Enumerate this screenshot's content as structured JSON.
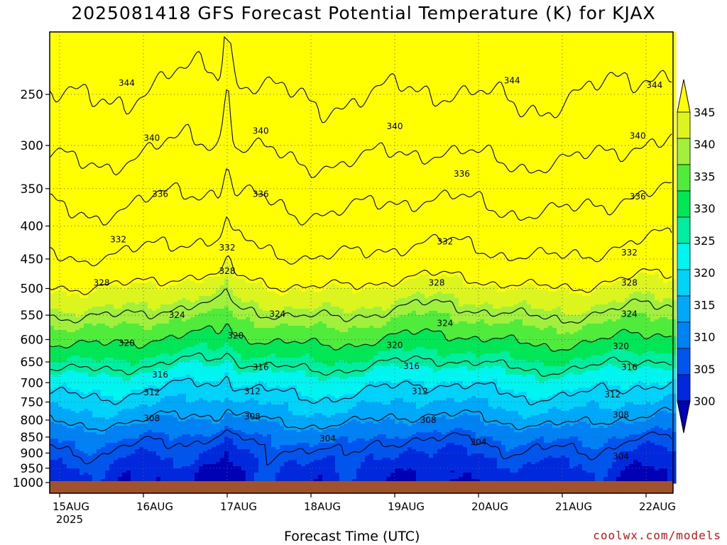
{
  "title": "2025081418 GFS Forecast Potential Temperature (K) for KJAX",
  "xlabel": "Forecast Time (UTC)",
  "credit": "coolwx.com/models",
  "chart_data": {
    "type": "heatmap",
    "title": "2025081418 GFS Forecast Potential Temperature (K) for KJAX",
    "xlabel": "Forecast Time (UTC)",
    "ylabel": "",
    "x_ticks": [
      "15AUG",
      "16AUG",
      "17AUG",
      "18AUG",
      "19AUG",
      "20AUG",
      "21AUG",
      "22AUG"
    ],
    "x_tick_year": "2025",
    "x_range_days": [
      0,
      7.83
    ],
    "y_ticks": [
      250,
      300,
      350,
      400,
      450,
      500,
      550,
      600,
      650,
      700,
      750,
      800,
      850,
      900,
      950,
      1000
    ],
    "y_log_scale": true,
    "y_range": [
      200,
      1000
    ],
    "y_reversed": true,
    "grid": true,
    "colorbar_ticks": [
      300,
      305,
      310,
      315,
      320,
      325,
      330,
      335,
      340,
      345
    ],
    "colorbar_colors": [
      "#0000b4",
      "#0028dc",
      "#0055ee",
      "#0082f5",
      "#00a8fa",
      "#00d2fa",
      "#00f5f0",
      "#00eea0",
      "#00e655",
      "#50ec3c",
      "#a0f03c",
      "#dcf51e",
      "#ffff00"
    ],
    "contour_interval": 4,
    "profile": {
      "pressures": [
        200,
        250,
        300,
        350,
        400,
        450,
        500,
        550,
        600,
        650,
        700,
        750,
        800,
        850,
        900,
        950,
        1000
      ],
      "theta": [
        347,
        343.5,
        340.5,
        337,
        334,
        331,
        327,
        323.5,
        320,
        316.5,
        313,
        310.5,
        308,
        305,
        303,
        301.5,
        300.5
      ]
    },
    "contour_labels": [
      {
        "v": "344",
        "d": 0.8,
        "p": 240
      },
      {
        "v": "344",
        "d": 5.4,
        "p": 238
      },
      {
        "v": "344",
        "d": 7.1,
        "p": 242
      },
      {
        "v": "340",
        "d": 1.1,
        "p": 292
      },
      {
        "v": "340",
        "d": 2.4,
        "p": 285
      },
      {
        "v": "340",
        "d": 4.0,
        "p": 280
      },
      {
        "v": "340",
        "d": 6.9,
        "p": 290
      },
      {
        "v": "336",
        "d": 1.2,
        "p": 357
      },
      {
        "v": "336",
        "d": 2.4,
        "p": 357
      },
      {
        "v": "336",
        "d": 4.8,
        "p": 332
      },
      {
        "v": "336",
        "d": 6.9,
        "p": 360
      },
      {
        "v": "332",
        "d": 0.7,
        "p": 420
      },
      {
        "v": "332",
        "d": 2.0,
        "p": 432
      },
      {
        "v": "332",
        "d": 4.6,
        "p": 423
      },
      {
        "v": "332",
        "d": 6.8,
        "p": 440
      },
      {
        "v": "328",
        "d": 0.5,
        "p": 490
      },
      {
        "v": "328",
        "d": 2.0,
        "p": 470
      },
      {
        "v": "328",
        "d": 4.5,
        "p": 490
      },
      {
        "v": "328",
        "d": 6.8,
        "p": 490
      },
      {
        "v": "324",
        "d": 1.4,
        "p": 550
      },
      {
        "v": "324",
        "d": 2.6,
        "p": 548
      },
      {
        "v": "324",
        "d": 4.6,
        "p": 566
      },
      {
        "v": "324",
        "d": 6.8,
        "p": 548
      },
      {
        "v": "320",
        "d": 0.8,
        "p": 608
      },
      {
        "v": "320",
        "d": 2.1,
        "p": 592
      },
      {
        "v": "320",
        "d": 4.0,
        "p": 612
      },
      {
        "v": "320",
        "d": 6.7,
        "p": 615
      },
      {
        "v": "316",
        "d": 1.2,
        "p": 680
      },
      {
        "v": "316",
        "d": 2.4,
        "p": 662
      },
      {
        "v": "316",
        "d": 4.2,
        "p": 660
      },
      {
        "v": "316",
        "d": 6.8,
        "p": 662
      },
      {
        "v": "312",
        "d": 1.1,
        "p": 725
      },
      {
        "v": "312",
        "d": 2.3,
        "p": 722
      },
      {
        "v": "312",
        "d": 4.3,
        "p": 722
      },
      {
        "v": "312",
        "d": 6.6,
        "p": 730
      },
      {
        "v": "308",
        "d": 1.1,
        "p": 795
      },
      {
        "v": "308",
        "d": 2.3,
        "p": 790
      },
      {
        "v": "308",
        "d": 4.4,
        "p": 800
      },
      {
        "v": "308",
        "d": 6.7,
        "p": 785
      },
      {
        "v": "304",
        "d": 3.2,
        "p": 855
      },
      {
        "v": "304",
        "d": 5.0,
        "p": 865
      },
      {
        "v": "304",
        "d": 6.7,
        "p": 910
      }
    ]
  }
}
